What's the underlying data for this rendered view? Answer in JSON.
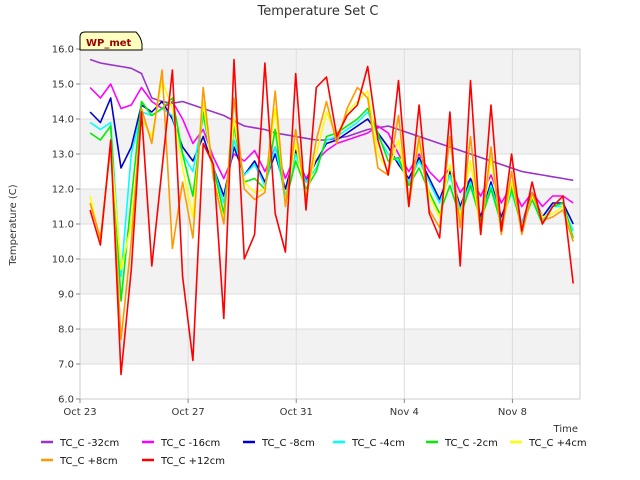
{
  "chart_data": {
    "type": "line",
    "title": "Temperature Set C",
    "xlabel": "Time",
    "ylabel": "Temperature (C)",
    "ylim": [
      6.0,
      16.0
    ],
    "yticks": [
      "6.0",
      "7.0",
      "8.0",
      "9.0",
      "10.0",
      "11.0",
      "12.0",
      "13.0",
      "14.0",
      "15.0",
      "16.0"
    ],
    "xlim": [
      "2023-10-23",
      "2023-11-10T12:00"
    ],
    "xticks": [
      {
        "date": "2023-10-23",
        "label": "Oct 23"
      },
      {
        "date": "2023-10-27",
        "label": "Oct 27"
      },
      {
        "date": "2023-10-31",
        "label": "Oct 31"
      },
      {
        "date": "2023-11-04",
        "label": "Nov 4"
      },
      {
        "date": "2023-11-08",
        "label": "Nov 8"
      }
    ],
    "grid": true,
    "banded_background": true,
    "legend_position": "bottom",
    "annotation": {
      "text": "WP_met",
      "position": "top-left"
    },
    "series": [
      {
        "name": "TC_C -32cm",
        "color": "#9933cc",
        "x_start": "2023-10-23T09:00",
        "x_end": "2023-11-10T06:00",
        "values": [
          15.7,
          15.6,
          15.55,
          15.5,
          15.45,
          15.3,
          14.6,
          14.5,
          14.45,
          14.5,
          14.4,
          14.3,
          14.2,
          14.1,
          13.95,
          13.8,
          13.75,
          13.7,
          13.6,
          13.55,
          13.5,
          13.45,
          13.4,
          13.4,
          13.45,
          13.5,
          13.6,
          13.7,
          13.75,
          13.8,
          13.7,
          13.6,
          13.5,
          13.4,
          13.3,
          13.2,
          13.1,
          13.0,
          12.9,
          12.8,
          12.7,
          12.6,
          12.5,
          12.45,
          12.4,
          12.35,
          12.3,
          12.25
        ]
      },
      {
        "name": "TC_C -16cm",
        "color": "#ff00ff",
        "x_start": "2023-10-23T09:00",
        "x_end": "2023-11-10T06:00",
        "values": [
          14.9,
          14.6,
          15.0,
          14.3,
          14.4,
          14.9,
          14.5,
          14.3,
          14.5,
          14.0,
          13.3,
          13.7,
          12.9,
          12.3,
          13.0,
          12.8,
          13.1,
          12.5,
          13.2,
          12.3,
          13.0,
          12.3,
          12.8,
          13.1,
          13.3,
          13.4,
          13.5,
          13.6,
          13.8,
          13.6,
          13.0,
          12.5,
          13.0,
          12.5,
          12.2,
          12.6,
          11.9,
          12.3,
          11.8,
          12.4,
          11.6,
          12.1,
          11.5,
          11.9,
          11.5,
          11.8,
          11.8,
          11.6
        ]
      },
      {
        "name": "TC_C -8cm",
        "color": "#0000cc",
        "x_start": "2023-10-23T09:00",
        "x_end": "2023-11-10T06:00",
        "values": [
          14.2,
          13.9,
          14.6,
          12.6,
          13.2,
          14.4,
          14.2,
          14.5,
          14.0,
          13.2,
          12.8,
          13.5,
          12.6,
          11.8,
          13.2,
          12.4,
          12.8,
          12.2,
          13.0,
          12.0,
          13.1,
          12.2,
          12.8,
          13.3,
          13.4,
          13.6,
          13.8,
          14.0,
          13.6,
          13.2,
          12.7,
          12.3,
          12.9,
          12.3,
          11.7,
          12.5,
          11.5,
          12.3,
          11.2,
          12.2,
          11.2,
          12.0,
          11.0,
          11.9,
          11.2,
          11.6,
          11.6,
          11.0
        ]
      },
      {
        "name": "TC_C -4cm",
        "color": "#00ffff",
        "x_start": "2023-10-23T09:00",
        "x_end": "2023-11-10T06:00",
        "values": [
          13.9,
          13.7,
          13.9,
          9.5,
          13.0,
          14.2,
          14.1,
          14.3,
          14.1,
          13.0,
          12.5,
          14.1,
          12.6,
          11.6,
          13.4,
          12.4,
          12.7,
          12.1,
          13.2,
          11.8,
          13.0,
          12.2,
          12.6,
          13.4,
          13.5,
          13.7,
          13.9,
          14.2,
          13.5,
          13.0,
          12.8,
          12.2,
          12.8,
          12.2,
          11.6,
          12.4,
          11.4,
          12.2,
          11.1,
          12.1,
          11.1,
          11.9,
          11.0,
          11.8,
          11.1,
          11.5,
          11.5,
          10.8
        ]
      },
      {
        "name": "TC_C -2cm",
        "color": "#00ee00",
        "x_start": "2023-10-23T09:00",
        "x_end": "2023-11-10T06:00",
        "values": [
          13.6,
          13.4,
          13.8,
          8.8,
          11.7,
          14.5,
          14.1,
          14.3,
          14.6,
          13.0,
          11.8,
          14.2,
          12.6,
          11.3,
          13.8,
          12.2,
          12.3,
          12.0,
          13.7,
          11.6,
          12.8,
          12.0,
          12.5,
          13.5,
          13.6,
          13.8,
          14.0,
          14.3,
          13.6,
          12.8,
          12.9,
          12.1,
          12.6,
          11.9,
          11.3,
          12.1,
          11.2,
          12.1,
          11.1,
          12.0,
          11.0,
          12.0,
          10.9,
          11.7,
          11.0,
          11.5,
          11.6,
          10.6
        ]
      },
      {
        "name": "TC_C +4cm",
        "color": "#ffff00",
        "x_start": "2023-10-23T09:00",
        "x_end": "2023-11-10T06:00",
        "values": [
          11.8,
          10.5,
          13.3,
          9.7,
          11.0,
          14.0,
          13.5,
          15.1,
          14.3,
          12.6,
          11.2,
          14.5,
          12.3,
          11.1,
          14.0,
          12.2,
          11.9,
          12.0,
          14.3,
          11.6,
          13.3,
          11.8,
          13.0,
          14.2,
          13.5,
          14.2,
          14.5,
          14.8,
          13.0,
          12.5,
          13.4,
          11.7,
          13.3,
          11.8,
          11.2,
          12.7,
          11.2,
          12.8,
          10.8,
          12.9,
          10.8,
          12.2,
          10.9,
          11.8,
          11.2,
          11.3,
          11.5,
          10.5
        ]
      },
      {
        "name": "TC_C +8cm",
        "color": "#ff9900",
        "x_start": "2023-10-23T09:00",
        "x_end": "2023-11-10T06:00",
        "values": [
          11.6,
          10.6,
          13.2,
          7.7,
          10.5,
          14.3,
          13.3,
          15.4,
          10.3,
          12.2,
          10.6,
          14.9,
          12.3,
          11.0,
          14.6,
          12.0,
          11.7,
          11.9,
          14.8,
          11.5,
          13.7,
          11.7,
          13.4,
          14.5,
          13.3,
          14.3,
          14.9,
          14.6,
          12.6,
          12.4,
          14.1,
          11.5,
          13.5,
          11.4,
          10.9,
          13.5,
          10.9,
          13.5,
          10.7,
          13.2,
          10.7,
          12.5,
          10.7,
          11.9,
          11.1,
          11.2,
          11.4,
          10.5
        ]
      },
      {
        "name": "TC_C +12cm",
        "color": "#ff0000",
        "x_start": "2023-10-23T09:00",
        "x_end": "2023-11-10T06:00",
        "values": [
          11.4,
          10.4,
          13.4,
          6.7,
          9.7,
          14.2,
          9.8,
          12.6,
          15.4,
          9.5,
          7.1,
          13.3,
          12.7,
          8.3,
          15.7,
          10.0,
          10.7,
          15.6,
          11.3,
          10.2,
          15.3,
          11.4,
          14.9,
          15.2,
          13.5,
          14.1,
          14.4,
          15.5,
          13.4,
          12.4,
          15.1,
          11.5,
          14.4,
          11.3,
          10.6,
          14.2,
          9.8,
          15.1,
          10.7,
          14.4,
          10.8,
          13.0,
          10.8,
          12.2,
          11.0,
          11.5,
          11.8,
          9.3
        ]
      }
    ]
  }
}
